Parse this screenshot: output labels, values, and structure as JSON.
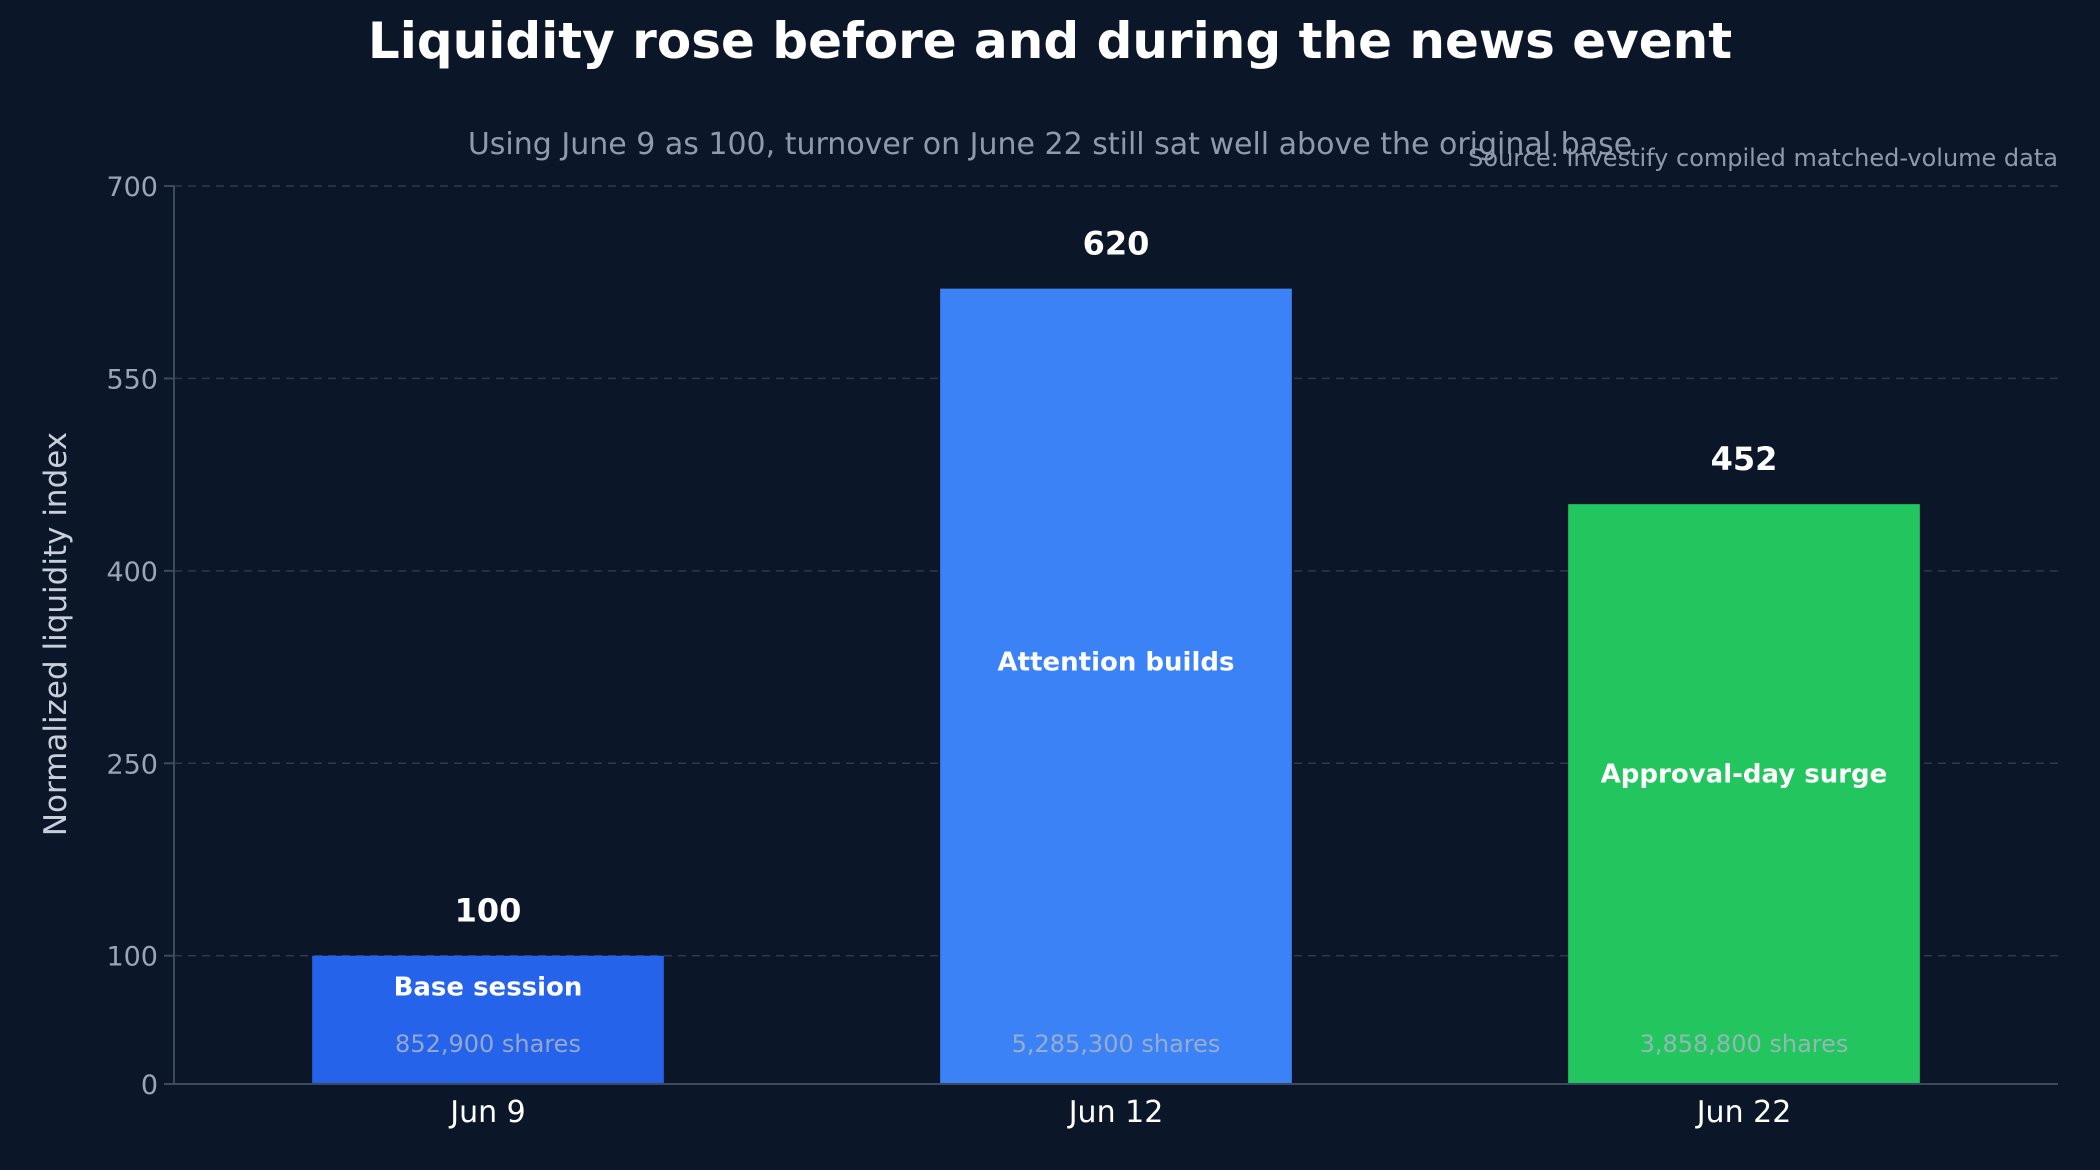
{
  "chart_data": {
    "type": "bar",
    "title": "Liquidity rose before and during the news event",
    "subtitle": "Using June 9 as 100, turnover on June 22 still sat well above the original base",
    "source": "Source: Investify compiled matched-volume data",
    "ylabel": "Normalized liquidity index",
    "xlabel": "",
    "ylim": [
      0,
      700
    ],
    "yticks": [
      0,
      100,
      250,
      400,
      550,
      700
    ],
    "grid": true,
    "categories": [
      "Jun 9",
      "Jun 12",
      "Jun 22"
    ],
    "values": [
      100,
      620,
      452
    ],
    "value_labels": [
      "100",
      "620",
      "452"
    ],
    "bar_annotations": [
      "Base session",
      "Attention builds",
      "Approval-day surge"
    ],
    "shares": [
      "852,900 shares",
      "5,285,300 shares",
      "3,858,800 shares"
    ],
    "colors": [
      "#2563eb",
      "#3b82f6",
      "#22c55e"
    ]
  }
}
